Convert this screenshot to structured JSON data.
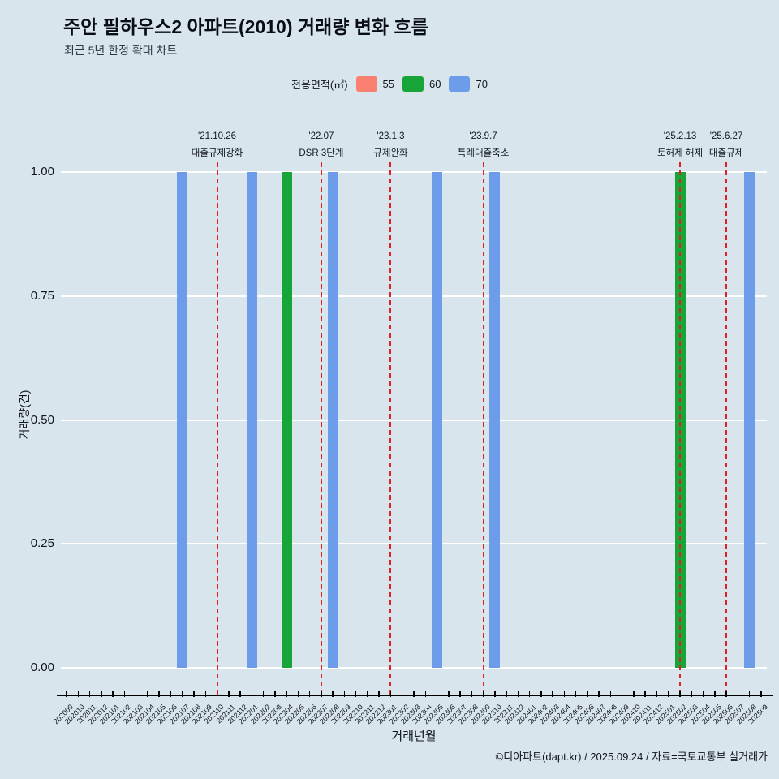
{
  "title": "주안 필하우스2 아파트(2010) 거래량 변화 흐름",
  "subtitle": "최근 5년 한정 확대 차트",
  "legend": {
    "label": "전용면적(㎡)",
    "items": [
      {
        "name": "55",
        "color": "#fa8072"
      },
      {
        "name": "60",
        "color": "#17a53a"
      },
      {
        "name": "70",
        "color": "#6d9cea"
      }
    ]
  },
  "footer": "©디아파트(dapt.kr) / 2025.09.24 / 자료=국토교통부 실거래가",
  "chart_data": {
    "type": "bar",
    "title": "주안 필하우스2 아파트(2010) 거래량 변화 흐름",
    "xlabel": "거래년월",
    "ylabel": "거래량(건)",
    "ylim": [
      0,
      1
    ],
    "y_ticks": [
      "0.00",
      "0.25",
      "0.50",
      "0.75",
      "1.00"
    ],
    "grid": true,
    "legend_position": "top-center",
    "months": [
      "202009",
      "202010",
      "202011",
      "202012",
      "202101",
      "202102",
      "202103",
      "202104",
      "202105",
      "202106",
      "202107",
      "202108",
      "202109",
      "202110",
      "202111",
      "202112",
      "202201",
      "202202",
      "202203",
      "202204",
      "202205",
      "202206",
      "202207",
      "202208",
      "202209",
      "202210",
      "202211",
      "202212",
      "202301",
      "202302",
      "202303",
      "202304",
      "202305",
      "202306",
      "202307",
      "202308",
      "202309",
      "202310",
      "202311",
      "202312",
      "202401",
      "202402",
      "202403",
      "202404",
      "202405",
      "202406",
      "202407",
      "202408",
      "202409",
      "202410",
      "202411",
      "202412",
      "202501",
      "202502",
      "202503",
      "202504",
      "202505",
      "202506",
      "202507",
      "202508",
      "202509"
    ],
    "series": [
      {
        "name": "55",
        "color": "#fa8072",
        "points": []
      },
      {
        "name": "60",
        "color": "#17a53a",
        "points": [
          {
            "month": "202204",
            "value": 1
          },
          {
            "month": "202502",
            "value": 1
          }
        ]
      },
      {
        "name": "70",
        "color": "#6d9cea",
        "points": [
          {
            "month": "202107",
            "value": 1
          },
          {
            "month": "202201",
            "value": 1
          },
          {
            "month": "202208",
            "value": 1
          },
          {
            "month": "202305",
            "value": 1
          },
          {
            "month": "202310",
            "value": 1
          },
          {
            "month": "202508",
            "value": 1
          }
        ]
      }
    ],
    "annotations": [
      {
        "date": "'21.10.26",
        "label": "대출규제강화",
        "month": "202110"
      },
      {
        "date": "'22.07",
        "label": "DSR 3단계",
        "month": "202207"
      },
      {
        "date": "'23.1.3",
        "label": "규제완화",
        "month": "202301"
      },
      {
        "date": "'23.9.7",
        "label": "특례대출축소",
        "month": "202309"
      },
      {
        "date": "'25.2.13",
        "label": "토허제 해제",
        "month": "202502"
      },
      {
        "date": "'25.6.27",
        "label": "대출규제",
        "month": "202506"
      }
    ],
    "colors": {
      "background": "#d9e5ed",
      "gridline": "#ffffff",
      "event_line": "#e01f26",
      "axis": "#000000"
    }
  }
}
